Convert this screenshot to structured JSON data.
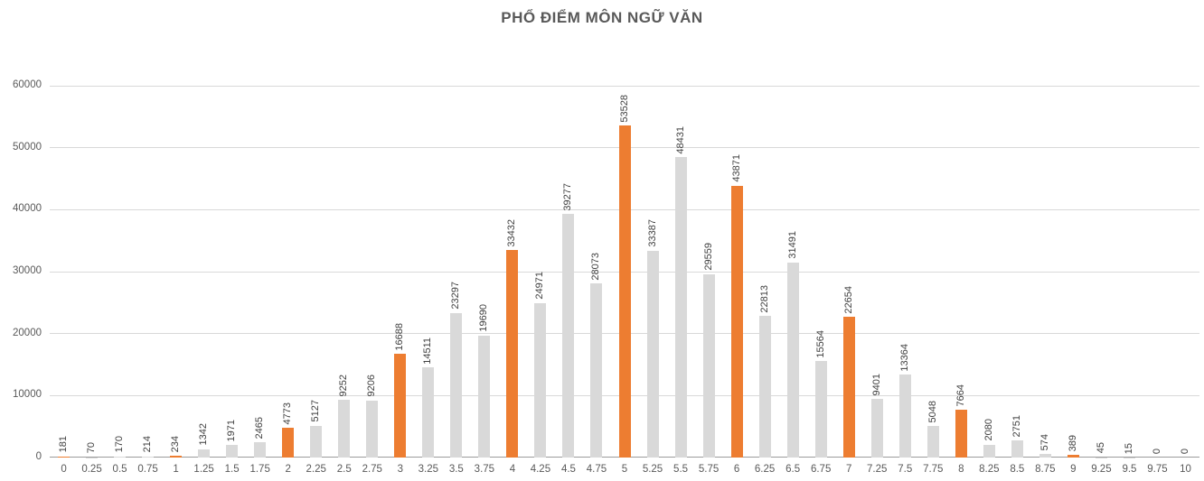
{
  "chart_data": {
    "type": "bar",
    "title": "PHỔ ĐIỂM MÔN NGỮ VĂN",
    "categories": [
      "0",
      "0.25",
      "0.5",
      "0.75",
      "1",
      "1.25",
      "1.5",
      "1.75",
      "2",
      "2.25",
      "2.5",
      "2.75",
      "3",
      "3.25",
      "3.5",
      "3.75",
      "4",
      "4.25",
      "4.5",
      "4.75",
      "5",
      "5.25",
      "5.5",
      "5.75",
      "6",
      "6.25",
      "6.5",
      "6.75",
      "7",
      "7.25",
      "7.5",
      "7.75",
      "8",
      "8.25",
      "8.5",
      "8.75",
      "9",
      "9.25",
      "9.5",
      "9.75",
      "10"
    ],
    "values": [
      181,
      70,
      170,
      214,
      234,
      1342,
      1971,
      2465,
      4773,
      5127,
      9252,
      9206,
      16688,
      14511,
      23297,
      19690,
      33432,
      24971,
      39277,
      28073,
      53528,
      33387,
      48431,
      29559,
      43871,
      22813,
      31491,
      15564,
      22654,
      9401,
      13364,
      5048,
      7664,
      2080,
      2751,
      574,
      389,
      45,
      15,
      0,
      0
    ],
    "xlabel": "",
    "ylabel": "",
    "ylim": [
      0,
      60000
    ],
    "yticks": [
      0,
      10000,
      20000,
      30000,
      40000,
      50000,
      60000
    ],
    "grid": true,
    "legend": false,
    "bar_label_rotation": 90,
    "highlight_rule": "integer-scores-orange",
    "colors": {
      "integer_score_bar": "#ED7D31",
      "fraction_score_bar": "#D9D9D9",
      "gridline": "#D9D9D9",
      "axis_line": "#9B9B9B",
      "tick_label": "#595959",
      "value_label": "#404040",
      "title": "#595959",
      "background": "#FFFFFF"
    }
  }
}
